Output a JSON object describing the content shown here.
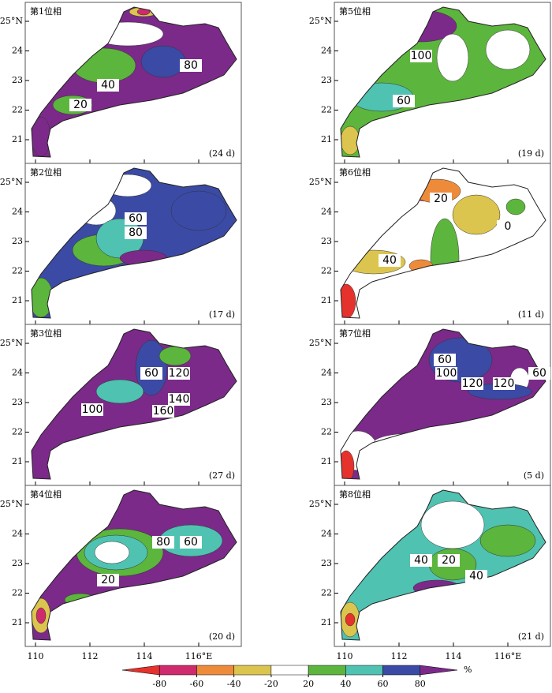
{
  "panels": [
    {
      "title": "第1位相",
      "days": "(24 d)",
      "labels": [
        "40",
        "80",
        "20"
      ]
    },
    {
      "title": "第2位相",
      "days": "(17 d)",
      "labels": [
        "60",
        "80"
      ]
    },
    {
      "title": "第3位相",
      "days": "(27 d)",
      "labels": [
        "60",
        "120",
        "140",
        "100",
        "160"
      ]
    },
    {
      "title": "第4位相",
      "days": "(20 d)",
      "labels": [
        "80",
        "60",
        "20"
      ]
    },
    {
      "title": "第5位相",
      "days": "(19 d)",
      "labels": [
        "100",
        "60"
      ]
    },
    {
      "title": "第6位相",
      "days": "(11 d)",
      "labels": [
        "20",
        "40",
        "0"
      ]
    },
    {
      "title": "第7位相",
      "days": "(5 d)",
      "labels": [
        "60",
        "100",
        "120",
        "120",
        "60"
      ]
    },
    {
      "title": "第8位相",
      "days": "(21 d)",
      "labels": [
        "40",
        "20",
        "40"
      ]
    }
  ],
  "axes": {
    "xticks": [
      110,
      112,
      114,
      {
        "value": 116,
        "label": "116°E"
      }
    ],
    "yticks": [
      {
        "value": 25,
        "label": "25°N"
      },
      24,
      23,
      22,
      21
    ]
  },
  "colorbar": {
    "ticks": [
      -80,
      -60,
      -40,
      -20,
      20,
      40,
      60,
      80
    ],
    "colors": [
      "#e5322d",
      "#cf2a6e",
      "#ee8b3a",
      "#dcc54e",
      "#ffffff",
      "#5cb53c",
      "#4fc2b1",
      "#3b4aa5",
      "#7b2a89"
    ],
    "unit": "%"
  }
}
